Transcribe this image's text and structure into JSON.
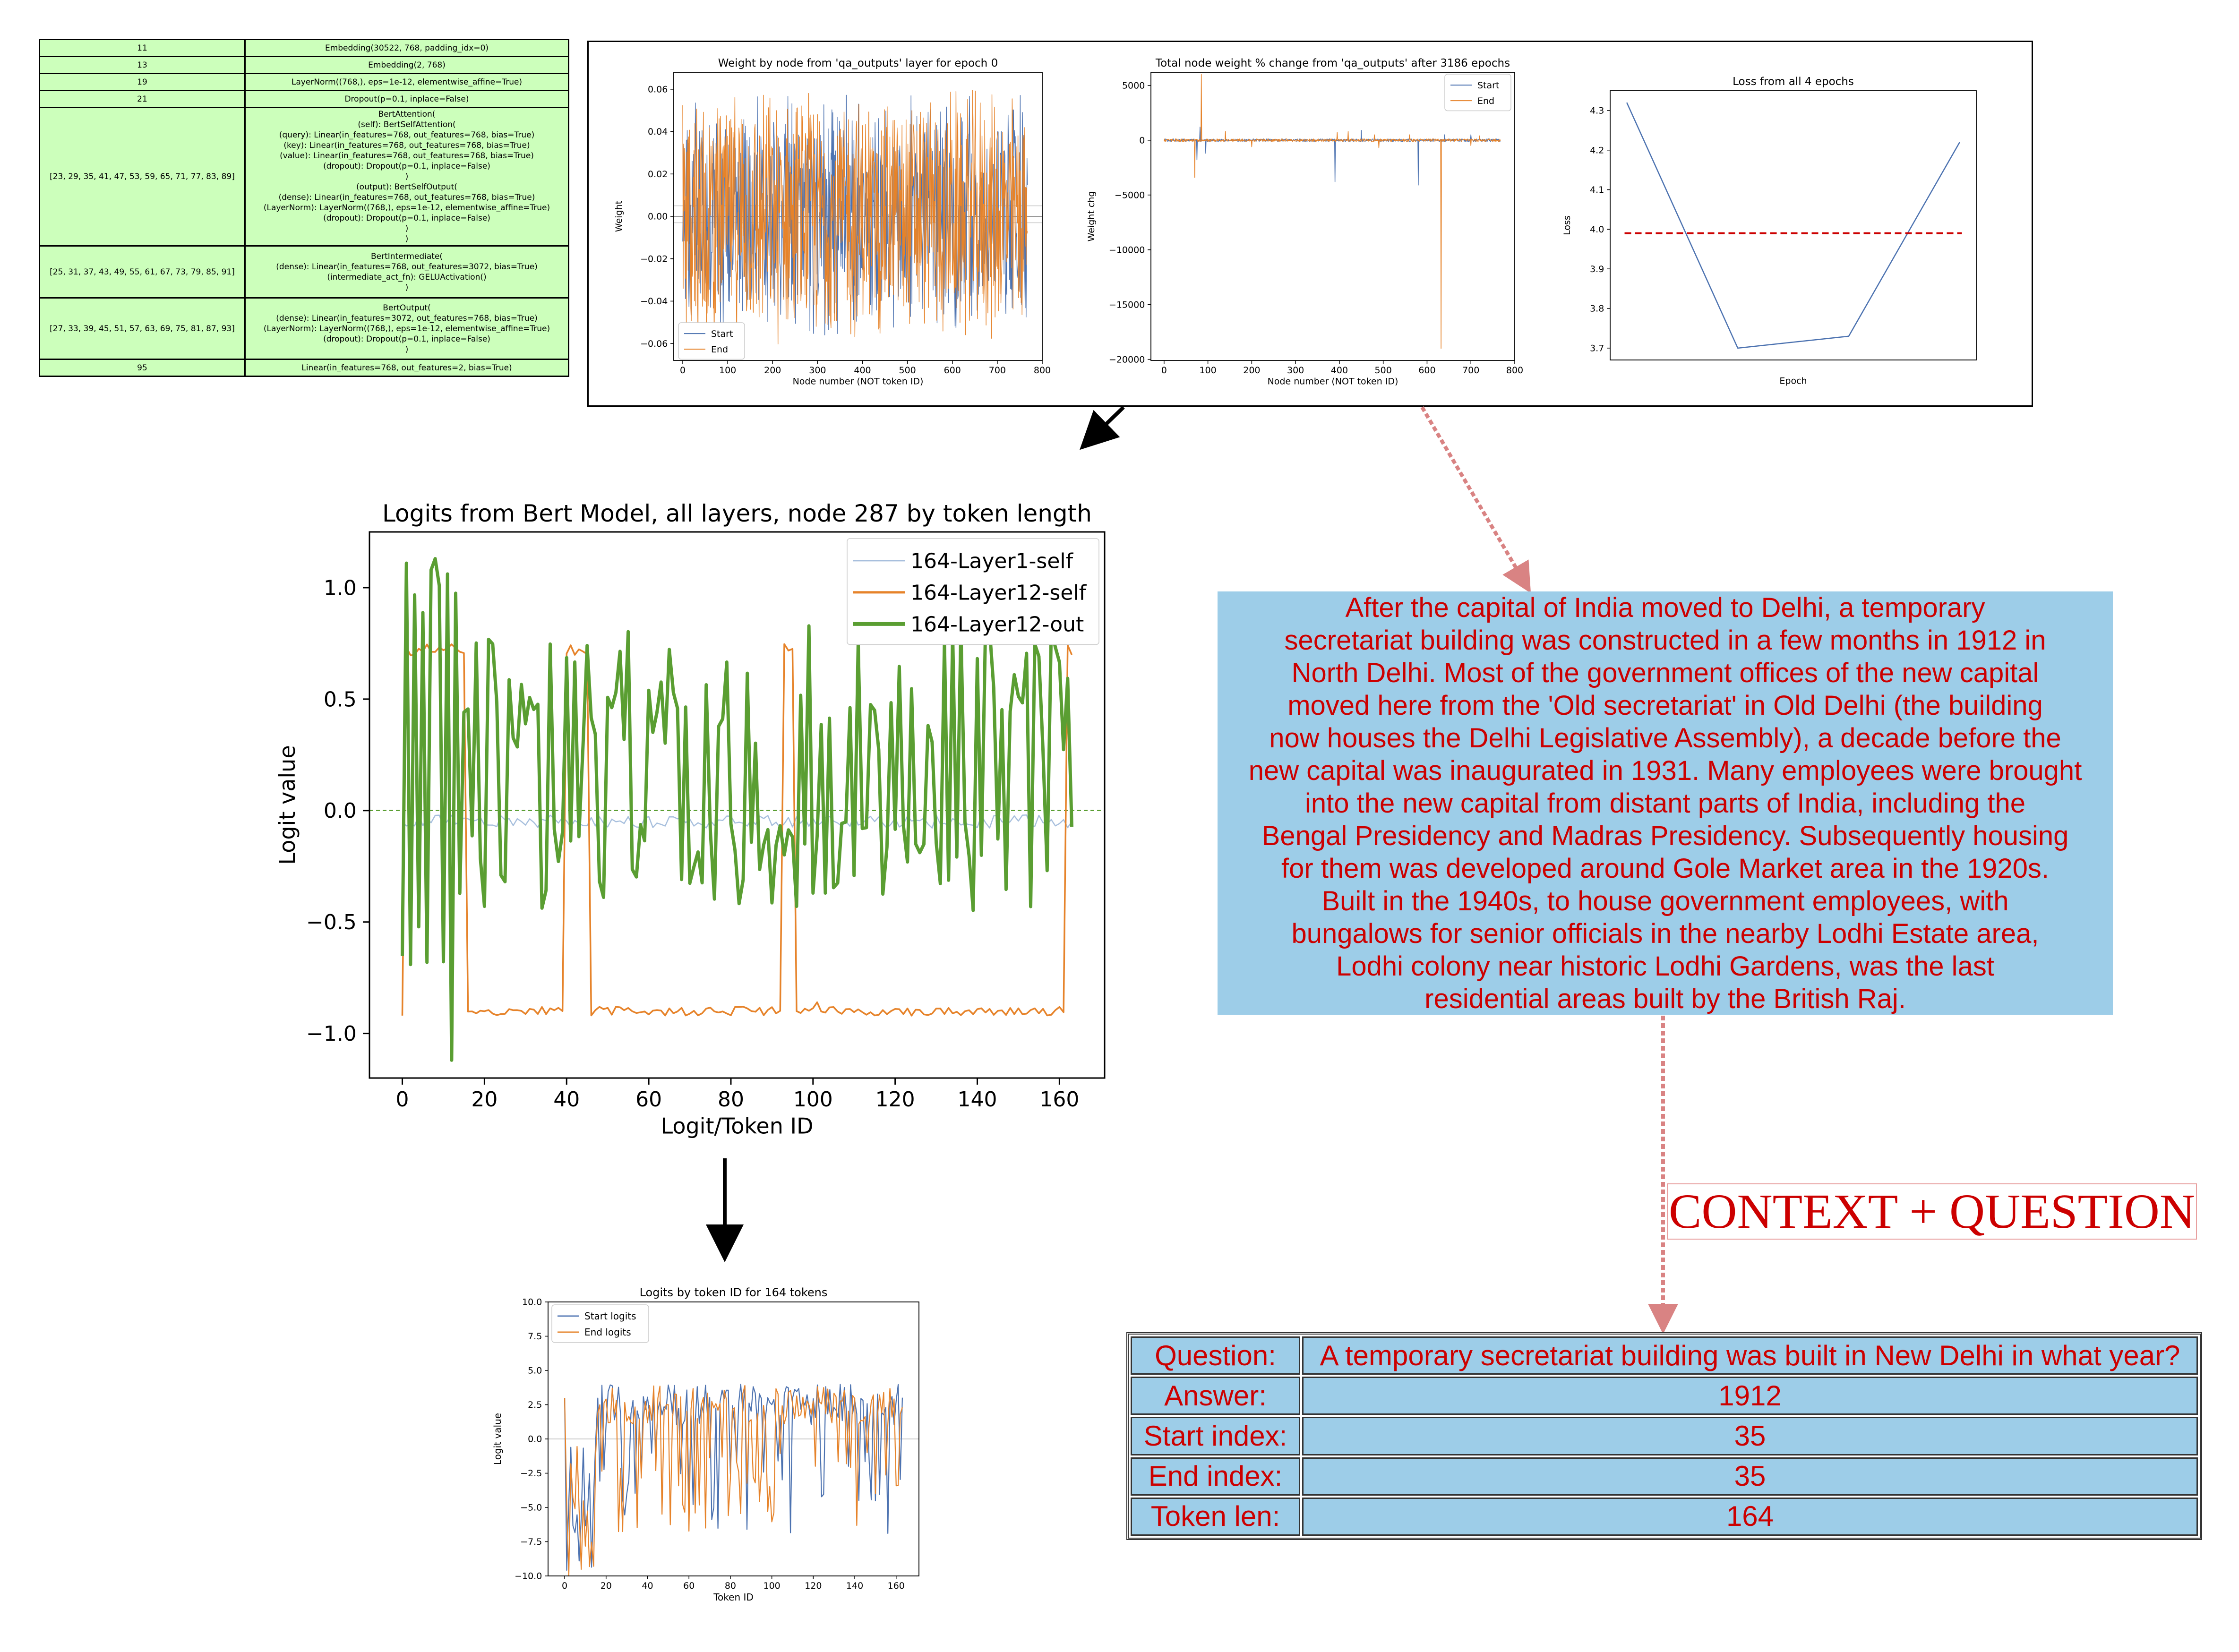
{
  "layer_table": {
    "rows": [
      {
        "index": "11",
        "module": "Embedding(30522, 768, padding_idx=0)"
      },
      {
        "index": "13",
        "module": "Embedding(2, 768)"
      },
      {
        "index": "19",
        "module": "LayerNorm((768,), eps=1e-12, elementwise_affine=True)"
      },
      {
        "index": "21",
        "module": "Dropout(p=0.1, inplace=False)"
      },
      {
        "index": "[23, 29, 35, 41, 47, 53, 59, 65, 71, 77, 83, 89]",
        "module": "BertAttention(\n(self): BertSelfAttention(\n(query): Linear(in_features=768, out_features=768, bias=True)\n(key): Linear(in_features=768, out_features=768, bias=True)\n(value): Linear(in_features=768, out_features=768, bias=True)\n(dropout): Dropout(p=0.1, inplace=False)\n)\n(output): BertSelfOutput(\n(dense): Linear(in_features=768, out_features=768, bias=True)\n(LayerNorm): LayerNorm((768,), eps=1e-12, elementwise_affine=True)\n(dropout): Dropout(p=0.1, inplace=False)\n)\n)"
      },
      {
        "index": "[25, 31, 37, 43, 49, 55, 61, 67, 73, 79, 85, 91]",
        "module": "BertIntermediate(\n(dense): Linear(in_features=768, out_features=3072, bias=True)\n(intermediate_act_fn): GELUActivation()\n)"
      },
      {
        "index": "[27, 33, 39, 45, 51, 57, 63, 69, 75, 81, 87, 93]",
        "module": "BertOutput(\n(dense): Linear(in_features=3072, out_features=768, bias=True)\n(LayerNorm): LayerNorm((768,), eps=1e-12, elementwise_affine=True)\n(dropout): Dropout(p=0.1, inplace=False)\n)"
      },
      {
        "index": "95",
        "module": "Linear(in_features=768, out_features=2, bias=True)"
      }
    ]
  },
  "context": {
    "text": "After the capital of India moved to Delhi, a temporary secretariat building was constructed in a few months in 1912 in North Delhi. Most of the government offices of the new capital moved here from the 'Old secretariat' in Old Delhi (the building now houses the Delhi Legislative Assembly), a decade before the new capital was inaugurated in 1931. Many employees were brought into the new capital from distant parts of India, including the Bengal Presidency and Madras Presidency. Subsequently housing for them was developed around Gole Market area in the 1920s. Built in the 1940s, to house government employees, with bungalows for senior officials in the nearby Lodhi Estate area, Lodhi colony near historic Lodhi Gardens, was the last residential areas built by the British Raj.",
    "lines": [
      "After the capital of India moved to Delhi, a temporary",
      "secretariat building was constructed in a few months in 1912 in",
      "North Delhi. Most of the government offices of the new capital",
      "moved here from the 'Old secretariat' in Old Delhi (the building",
      "now houses the Delhi Legislative Assembly), a decade before the",
      "new capital was inaugurated in 1931. Many employees were brought",
      "into the new capital from distant parts of India, including the",
      "Bengal Presidency and Madras Presidency. Subsequently housing",
      "for them was developed around Gole Market area in the 1920s.",
      "Built in the 1940s, to house government employees, with",
      "bungalows for senior officials in the nearby Lodhi Estate area,",
      "Lodhi colony near historic Lodhi Gardens, was the last",
      "residential areas built by the British Raj."
    ]
  },
  "context_label": "CONTEXT + QUESTION",
  "qa": {
    "question_key": "Question:",
    "question": "A temporary secretariat building was built in New Delhi in what year?",
    "answer_key": "Answer:",
    "answer": "1912",
    "start_key": "Start index:",
    "start": "35",
    "end_key": "End index:",
    "end": "35",
    "len_key": "Token len:",
    "len": "164"
  },
  "colors": {
    "start_blue": "#4c72b0",
    "end_orange": "#e6832a",
    "green": "#5a9e32",
    "light_blue": "#a7bfdd",
    "arrow_pink": "#d98383",
    "box_blue": "#9dcde8",
    "text_red": "#cc0000"
  },
  "chart_data": [
    {
      "id": "weights_epoch0",
      "type": "line",
      "title": "Weight by node from 'qa_outputs' layer for epoch 0",
      "xlabel": "Node number (NOT token ID)",
      "ylabel": "Weight",
      "xlim": [
        -20,
        800
      ],
      "ylim": [
        -0.068,
        0.068
      ],
      "xticks": [
        0,
        100,
        200,
        300,
        400,
        500,
        600,
        700,
        800
      ],
      "yticks": [
        -0.06,
        -0.04,
        -0.02,
        0.0,
        0.02,
        0.04,
        0.06
      ],
      "ytick_labels": [
        "−0.06",
        "−0.04",
        "−0.02",
        "0.00",
        "0.02",
        "0.04",
        "0.06"
      ],
      "legend": "lower-left",
      "series": [
        {
          "name": "Start",
          "color": "#4c72b0",
          "n": 768,
          "mean": 0.0,
          "range": [
            -0.06,
            0.06
          ]
        },
        {
          "name": "End",
          "color": "#e6832a",
          "n": 768,
          "mean": 0.0,
          "range": [
            -0.065,
            0.062
          ]
        }
      ],
      "hlines": [
        0.0
      ]
    },
    {
      "id": "weight_change",
      "type": "line",
      "title": "Total node weight % change from 'qa_outputs' after 3186 epochs",
      "xlabel": "Node number (NOT token ID)",
      "ylabel": "Weight chg",
      "xlim": [
        -30,
        800
      ],
      "ylim": [
        -20100,
        6200
      ],
      "xticks": [
        0,
        100,
        200,
        300,
        400,
        500,
        600,
        700,
        800
      ],
      "yticks": [
        5000,
        0,
        -5000,
        -10000,
        -15000,
        -20000
      ],
      "ytick_labels": [
        "5000",
        "0",
        "−5000",
        "−10000",
        "−15000",
        "−20000"
      ],
      "legend": "top-right",
      "series": [
        {
          "name": "Start",
          "color": "#4c72b0",
          "spikes": [
            [
              75,
              -1800
            ],
            [
              82,
              1200
            ],
            [
              95,
              -1200
            ],
            [
              390,
              -3800
            ],
            [
              450,
              900
            ],
            [
              580,
              -4100
            ],
            [
              640,
              500
            ],
            [
              700,
              500
            ]
          ]
        },
        {
          "name": "End",
          "color": "#e6832a",
          "spikes": [
            [
              70,
              -3400
            ],
            [
              85,
              6000
            ],
            [
              140,
              800
            ],
            [
              200,
              -600
            ],
            [
              395,
              700
            ],
            [
              420,
              800
            ],
            [
              480,
              500
            ],
            [
              490,
              -700
            ],
            [
              560,
              500
            ],
            [
              632,
              -19000
            ],
            [
              700,
              -500
            ],
            [
              720,
              400
            ]
          ]
        }
      ]
    },
    {
      "id": "loss",
      "type": "line",
      "title": "Loss from all 4 epochs",
      "xlabel": "Epoch",
      "ylabel": "Loss",
      "xlim": [
        -0.15,
        3.15
      ],
      "ylim": [
        3.67,
        4.35
      ],
      "yticks": [
        3.7,
        3.8,
        3.9,
        4.0,
        4.1,
        4.2,
        4.3
      ],
      "ytick_labels": [
        "3.7",
        "3.8",
        "3.9",
        "4.0",
        "4.1",
        "4.2",
        "4.3"
      ],
      "series": [
        {
          "name": "loss",
          "color": "#4c72b0",
          "x": [
            0,
            1,
            2,
            3
          ],
          "values": [
            4.32,
            3.7,
            3.73,
            4.22
          ]
        }
      ],
      "mean_line": {
        "value": 3.99,
        "color": "#cc0000"
      }
    },
    {
      "id": "layer_logits",
      "type": "line",
      "title": "Logits from Bert Model, all layers, node 287 by token length",
      "xlabel": "Logit/Token ID",
      "ylabel": "Logit value",
      "xlim": [
        -8,
        171
      ],
      "ylim": [
        -1.2,
        1.25
      ],
      "xticks": [
        0,
        20,
        40,
        60,
        80,
        100,
        120,
        140,
        160
      ],
      "yticks": [
        1.0,
        0.5,
        0.0,
        -0.5,
        -1.0
      ],
      "ytick_labels": [
        "1.0",
        "0.5",
        "0.0",
        "−0.5",
        "−1.0"
      ],
      "legend": "top-right",
      "hlines": [
        0.0
      ],
      "series": [
        {
          "name": "164-Layer1-self",
          "color": "#a7bfdd",
          "n": 164,
          "approx_level": -0.05
        },
        {
          "name": "164-Layer12-self",
          "color": "#e6832a",
          "n": 164,
          "approx_level": -0.9,
          "high_segments": [
            [
              1,
              15
            ],
            [
              40,
              45
            ],
            [
              93,
              95
            ],
            [
              162,
              163
            ]
          ],
          "high_level": 0.72
        },
        {
          "name": "164-Layer12-out",
          "color": "#5a9e32",
          "n": 164,
          "range": [
            -1.12,
            1.13
          ]
        }
      ]
    },
    {
      "id": "token_logits",
      "type": "line",
      "title": "Logits by token ID for 164 tokens",
      "xlabel": "Token ID",
      "ylabel": "Logit value",
      "xlim": [
        -8,
        171
      ],
      "ylim": [
        -10,
        10
      ],
      "xticks": [
        0,
        20,
        40,
        60,
        80,
        100,
        120,
        140,
        160
      ],
      "yticks": [
        10.0,
        7.5,
        5.0,
        2.5,
        0.0,
        -2.5,
        -5.0,
        -7.5,
        -10.0
      ],
      "ytick_labels": [
        "10.0",
        "7.5",
        "5.0",
        "2.5",
        "0.0",
        "−2.5",
        "−5.0",
        "−7.5",
        "−10.0"
      ],
      "legend": "top-left",
      "hlines": [
        0.0
      ],
      "series": [
        {
          "name": "Start logits",
          "color": "#4c72b0",
          "n": 164,
          "range": [
            -10,
            4
          ]
        },
        {
          "name": "End logits",
          "color": "#e6832a",
          "n": 164,
          "range": [
            -10,
            5
          ]
        }
      ]
    }
  ]
}
